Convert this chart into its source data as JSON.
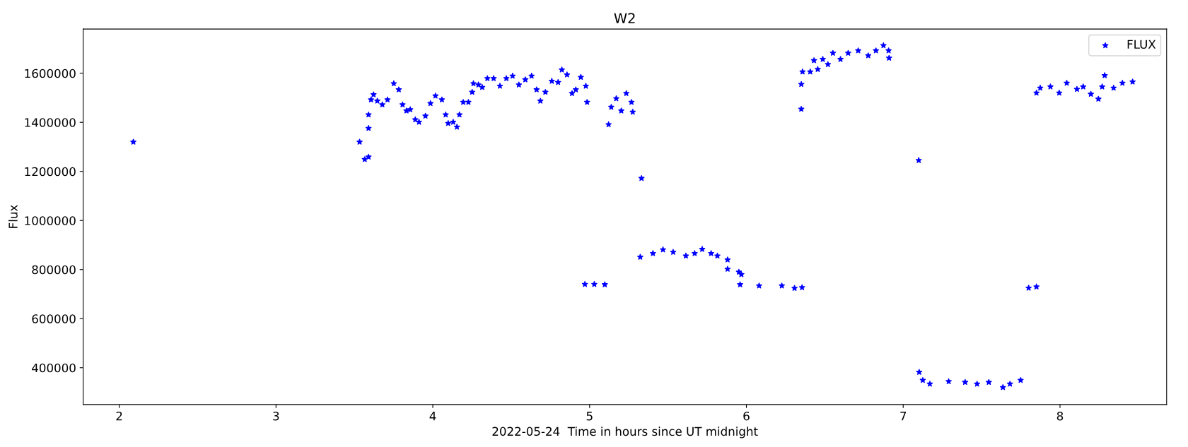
{
  "chart_data": {
    "type": "scatter",
    "title": "W2",
    "xlabel": "2022-05-24  Time in hours since UT midnight",
    "ylabel": "Flux",
    "xlim": [
      1.77,
      8.68
    ],
    "xticks": [
      2,
      3,
      4,
      5,
      6,
      7,
      8
    ],
    "ylim": [
      250000,
      1780000
    ],
    "yticks": [
      400000,
      600000,
      800000,
      1000000,
      1200000,
      1400000,
      1600000
    ],
    "grid": false,
    "legend": "top right",
    "marker": "star",
    "series": [
      {
        "name": "FLUX",
        "color": "#0000ff",
        "x": [
          2.09,
          3.533,
          3.566,
          3.59,
          3.59,
          3.59,
          3.606,
          3.622,
          3.646,
          3.678,
          3.711,
          3.751,
          3.783,
          3.807,
          3.832,
          3.856,
          3.888,
          3.912,
          3.953,
          3.985,
          4.017,
          4.058,
          4.082,
          4.098,
          4.13,
          4.154,
          4.17,
          4.194,
          4.227,
          4.251,
          4.259,
          4.291,
          4.315,
          4.348,
          4.388,
          4.428,
          4.469,
          4.509,
          4.549,
          4.59,
          4.63,
          4.662,
          4.686,
          4.718,
          4.759,
          4.799,
          4.823,
          4.856,
          4.888,
          4.912,
          4.944,
          4.976,
          4.984,
          4.97,
          5.03,
          5.097,
          5.121,
          5.138,
          5.17,
          5.202,
          5.234,
          5.267,
          5.275,
          5.331,
          5.323,
          5.404,
          5.468,
          5.533,
          5.614,
          5.67,
          5.718,
          5.775,
          5.815,
          5.88,
          5.88,
          5.952,
          5.968,
          5.96,
          6.081,
          6.226,
          6.307,
          6.355,
          6.35,
          6.35,
          6.358,
          6.407,
          6.431,
          6.455,
          6.487,
          6.52,
          6.552,
          6.6,
          6.649,
          6.713,
          6.777,
          6.826,
          6.874,
          6.907,
          6.91,
          7.099,
          7.102,
          7.125,
          7.17,
          7.29,
          7.395,
          7.471,
          7.546,
          7.636,
          7.681,
          7.749,
          7.8,
          7.85,
          7.85,
          7.874,
          7.939,
          7.995,
          8.043,
          8.108,
          8.148,
          8.197,
          8.245,
          8.269,
          8.285,
          8.342,
          8.398,
          8.463
        ],
        "values": [
          1320000,
          1320000,
          1249000,
          1259000,
          1376000,
          1431000,
          1492000,
          1513000,
          1487000,
          1472000,
          1492000,
          1558000,
          1533000,
          1472000,
          1447000,
          1452000,
          1411000,
          1401000,
          1426000,
          1477000,
          1508000,
          1492000,
          1431000,
          1396000,
          1401000,
          1381000,
          1431000,
          1482000,
          1482000,
          1523000,
          1558000,
          1553000,
          1543000,
          1579000,
          1579000,
          1548000,
          1579000,
          1589000,
          1553000,
          1574000,
          1589000,
          1533000,
          1487000,
          1523000,
          1568000,
          1563000,
          1614000,
          1594000,
          1518000,
          1533000,
          1584000,
          1548000,
          1482000,
          740000,
          740000,
          739000,
          1391000,
          1462000,
          1497000,
          1447000,
          1518000,
          1482000,
          1442000,
          1172000,
          851000,
          866000,
          881000,
          871000,
          856000,
          866000,
          883000,
          866000,
          856000,
          840000,
          802000,
          790000,
          780000,
          739000,
          734000,
          734000,
          724000,
          727000,
          1454000,
          1555000,
          1606000,
          1606000,
          1652000,
          1616000,
          1657000,
          1636000,
          1682000,
          1657000,
          1682000,
          1692000,
          1672000,
          1692000,
          1713000,
          1692000,
          1662000,
          1245000,
          382000,
          349000,
          334000,
          344000,
          341000,
          334000,
          341000,
          320000,
          334000,
          349000,
          725000,
          730000,
          1520000,
          1540000,
          1545000,
          1520000,
          1560000,
          1535000,
          1545000,
          1515000,
          1495000,
          1545000,
          1591000,
          1540000,
          1560000,
          1565000
        ]
      }
    ]
  }
}
